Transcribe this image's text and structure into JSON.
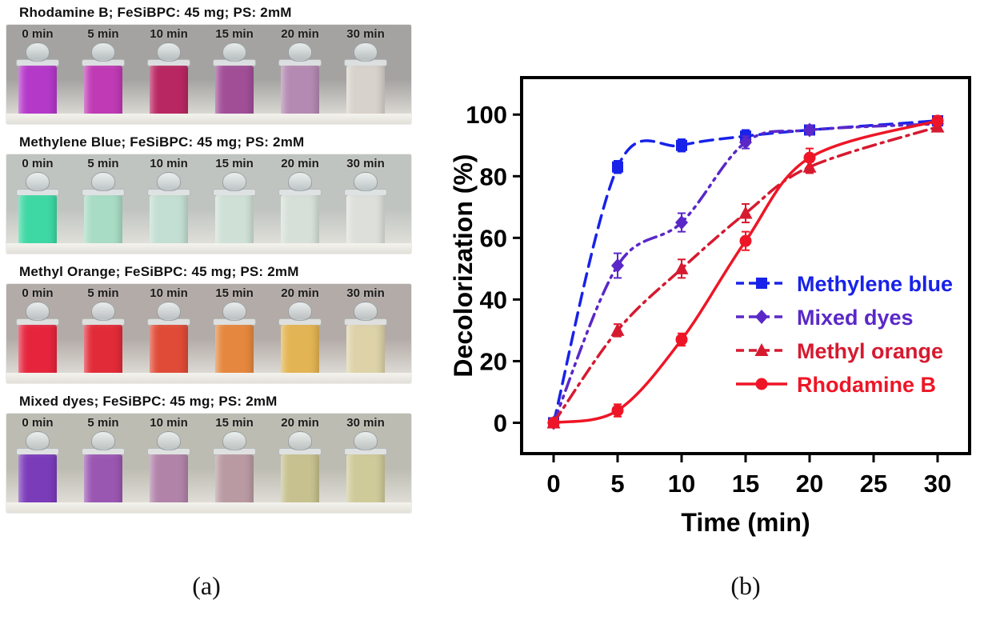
{
  "panel_a": {
    "caption": "(a)",
    "strips": [
      {
        "title": "Rhodamine B; FeSiBPC: 45 mg; PS: 2mM",
        "photo_bg": "#a4a3a1",
        "times": [
          "0 min",
          "5 min",
          "10 min",
          "15 min",
          "20 min",
          "30 min"
        ],
        "vial_colors": [
          "#b439c9",
          "#bf3ab4",
          "#b82762",
          "#a14e97",
          "#b48ab2",
          "#d7d2cb"
        ]
      },
      {
        "title": "Methylene Blue; FeSiBPC: 45 mg; PS: 2mM",
        "photo_bg": "#c0c4c0",
        "times": [
          "0 min",
          "5 min",
          "10 min",
          "15 min",
          "20 min",
          "30 min"
        ],
        "vial_colors": [
          "#3ed8a4",
          "#a8dcc4",
          "#c3ded2",
          "#cfe0d6",
          "#d6e0d8",
          "#dde0da"
        ]
      },
      {
        "title": "Methyl Orange; FeSiBPC: 45 mg; PS: 2mM",
        "photo_bg": "#b3aba7",
        "times": [
          "0 min",
          "5 min",
          "10 min",
          "15 min",
          "20 min",
          "30 min"
        ],
        "vial_colors": [
          "#e6253d",
          "#e22b38",
          "#df4b36",
          "#e5873e",
          "#e3b453",
          "#ddd2a8"
        ]
      },
      {
        "title": "Mixed dyes; FeSiBPC: 45 mg; PS: 2mM",
        "photo_bg": "#bdbcb2",
        "times": [
          "0 min",
          "5 min",
          "10 min",
          "15 min",
          "20 min",
          "30 min"
        ],
        "vial_colors": [
          "#7b3cba",
          "#9a57b2",
          "#b183a8",
          "#b99aa2",
          "#c6c18f",
          "#cfca9a"
        ]
      }
    ]
  },
  "panel_b": {
    "caption": "(b)"
  },
  "chart_data": {
    "type": "line",
    "title": "",
    "xlabel": "Time (min)",
    "ylabel": "Decolorization (%)",
    "x": [
      0,
      5,
      10,
      15,
      20,
      30
    ],
    "x_ticks": [
      0,
      5,
      10,
      15,
      20,
      25,
      30
    ],
    "y_ticks": [
      0,
      20,
      40,
      60,
      80,
      100
    ],
    "xlim": [
      -2.5,
      32.5
    ],
    "ylim": [
      -10,
      112
    ],
    "grid": false,
    "legend_position": "inside middle-right",
    "series": [
      {
        "name": "Methylene blue",
        "color": "#1822e8",
        "marker": "square",
        "line_style": "dashed",
        "values": [
          0,
          83,
          90,
          93,
          95,
          98
        ],
        "errors": [
          1,
          2,
          2,
          2,
          1.5,
          1.5
        ]
      },
      {
        "name": "Mixed dyes",
        "color": "#5a28c8",
        "marker": "diamond",
        "line_style": "dash-dot-dot",
        "values": [
          0,
          51,
          65,
          91,
          95,
          97
        ],
        "errors": [
          1,
          4,
          3,
          2,
          1.5,
          1.5
        ]
      },
      {
        "name": "Methyl orange",
        "color": "#d61a30",
        "marker": "triangle",
        "line_style": "dash-dot",
        "values": [
          0,
          30,
          50,
          68,
          83,
          96
        ],
        "errors": [
          1,
          2,
          3,
          3,
          2,
          1.5
        ]
      },
      {
        "name": "Rhodamine B",
        "color": "#ee1626",
        "marker": "circle",
        "line_style": "solid",
        "values": [
          0,
          4,
          27,
          59,
          86,
          98
        ],
        "errors": [
          1,
          2,
          2,
          3,
          3,
          1.5
        ]
      }
    ]
  }
}
